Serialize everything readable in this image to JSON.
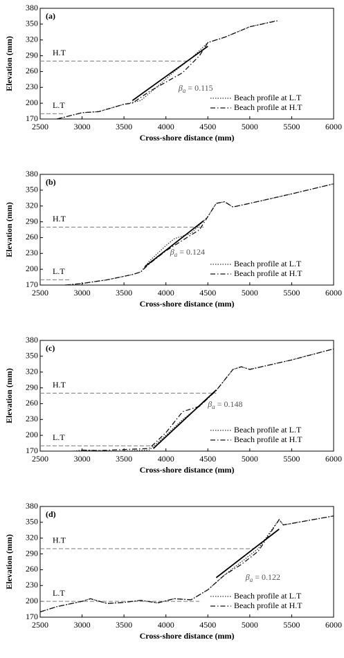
{
  "chart_data": [
    {
      "type": "line",
      "label": "(a)",
      "x_label": "Cross-shore distance (mm)",
      "y_label": "Elevation (mm)",
      "xlim": [
        2500,
        6000
      ],
      "ylim": [
        170,
        380
      ],
      "xticks": [
        2500,
        3000,
        3500,
        4000,
        4500,
        5000,
        5500,
        6000
      ],
      "yticks": [
        170,
        200,
        230,
        260,
        290,
        320,
        350,
        380
      ],
      "series": [
        {
          "name": "Beach profile at L.T",
          "color": "#333333",
          "dash": "1.5 2",
          "x": [
            2700,
            3000,
            3200,
            3500,
            3700,
            3900,
            4100,
            4300,
            4500,
            4700,
            5000,
            5300
          ],
          "values": [
            170,
            182,
            184,
            198,
            205,
            232,
            260,
            285,
            315,
            325,
            345,
            356
          ]
        },
        {
          "name": "Beach profile at H.T",
          "color": "#111111",
          "dash": "7 3 1.5 3",
          "x": [
            2700,
            3000,
            3200,
            3500,
            3600,
            3800,
            4000,
            4200,
            4400,
            4500,
            4700,
            5000,
            5350
          ],
          "values": [
            170,
            182,
            184,
            198,
            200,
            222,
            240,
            258,
            290,
            315,
            325,
            345,
            357
          ]
        }
      ],
      "levels": [
        {
          "label": "H.T",
          "value": 280
        },
        {
          "label": "L.T",
          "value": 180
        }
      ],
      "fit": {
        "x": [
          3600,
          4500
        ],
        "values": [
          205,
          308
        ]
      },
      "annotation": {
        "symbol": "β",
        "subscript": "a",
        "text": "= 0.115"
      }
    },
    {
      "type": "line",
      "label": "(b)",
      "x_label": "Cross-shore distance (mm)",
      "y_label": "Elevation (mm)",
      "xlim": [
        2500,
        6000
      ],
      "ylim": [
        170,
        380
      ],
      "xticks": [
        2500,
        3000,
        3500,
        4000,
        4500,
        5000,
        5500,
        6000
      ],
      "yticks": [
        170,
        200,
        230,
        260,
        290,
        320,
        350,
        380
      ],
      "series": [
        {
          "name": "Beach profile at L.T",
          "color": "#333333",
          "dash": "1.5 2",
          "x": [
            2800,
            3000,
            3300,
            3600,
            3700,
            3800,
            4000,
            4100,
            4300,
            4500,
            4600,
            4700,
            4800,
            5000,
            5500,
            6000
          ],
          "values": [
            170,
            173,
            180,
            190,
            195,
            215,
            245,
            258,
            268,
            300,
            325,
            328,
            318,
            325,
            343,
            362
          ]
        },
        {
          "name": "Beach profile at H.T",
          "color": "#111111",
          "dash": "7 3 1.5 3",
          "x": [
            2800,
            3000,
            3300,
            3600,
            3700,
            3800,
            4000,
            4200,
            4400,
            4500,
            4600,
            4700,
            4800,
            5000,
            5500,
            6000
          ],
          "values": [
            170,
            173,
            180,
            190,
            195,
            210,
            235,
            255,
            275,
            300,
            325,
            328,
            318,
            325,
            343,
            362
          ]
        }
      ],
      "levels": [
        {
          "label": "H.T",
          "value": 280
        },
        {
          "label": "L.T",
          "value": 180
        }
      ],
      "fit": {
        "x": [
          3750,
          4450
        ],
        "values": [
          205,
          292
        ]
      },
      "annotation": {
        "symbol": "β",
        "subscript": "a",
        "text": "= 0.124"
      }
    },
    {
      "type": "line",
      "label": "(c)",
      "x_label": "Cross-shore distance (mm)",
      "y_label": "Elevation (mm)",
      "xlim": [
        2500,
        6000
      ],
      "ylim": [
        170,
        380
      ],
      "xticks": [
        2500,
        3000,
        3500,
        4000,
        4500,
        5000,
        5500,
        6000
      ],
      "yticks": [
        170,
        200,
        230,
        260,
        290,
        320,
        350,
        380
      ],
      "series": [
        {
          "name": "Beach profile at L.T",
          "color": "#333333",
          "dash": "1.5 2",
          "x": [
            2900,
            3000,
            3200,
            3400,
            3800,
            4000,
            4200,
            4400,
            4600,
            4800,
            4900,
            5000,
            5500,
            6000
          ],
          "values": [
            170,
            172,
            171,
            170,
            172,
            200,
            230,
            255,
            285,
            325,
            330,
            325,
            343,
            364
          ]
        },
        {
          "name": "Beach profile at H.T",
          "color": "#111111",
          "dash": "7 3 1.5 3",
          "x": [
            3000,
            3200,
            3800,
            4000,
            4200,
            4400,
            4600,
            4800,
            4900,
            5000,
            5500,
            6000
          ],
          "values": [
            172,
            171,
            175,
            205,
            245,
            255,
            285,
            325,
            330,
            325,
            343,
            364
          ]
        }
      ],
      "levels": [
        {
          "label": "H.T",
          "value": 280
        },
        {
          "label": "L.T",
          "value": 180
        }
      ],
      "fit": {
        "x": [
          3850,
          4600
        ],
        "values": [
          175,
          286
        ]
      },
      "annotation": {
        "symbol": "β",
        "subscript": "a",
        "text": "= 0.148"
      }
    },
    {
      "type": "line",
      "label": "(d)",
      "x_label": "Cross-shore distance (mm)",
      "y_label": "Elevation (mm)",
      "xlim": [
        2500,
        6000
      ],
      "ylim": [
        170,
        380
      ],
      "xticks": [
        2500,
        3000,
        3500,
        4000,
        4500,
        5000,
        5500,
        6000
      ],
      "yticks": [
        170,
        200,
        230,
        260,
        290,
        320,
        350,
        380
      ],
      "series": [
        {
          "name": "Beach profile at L.T",
          "color": "#333333",
          "dash": "1.5 2",
          "x": [
            2500,
            2700,
            3000,
            3100,
            3300,
            3500,
            3700,
            3900,
            4100,
            4300,
            4500,
            4700,
            4900,
            5100,
            5350,
            5400,
            6000
          ],
          "values": [
            180,
            190,
            200,
            205,
            196,
            198,
            202,
            197,
            205,
            203,
            222,
            250,
            275,
            300,
            355,
            345,
            362
          ]
        },
        {
          "name": "Beach profile at H.T",
          "color": "#111111",
          "dash": "7 3 1.5 3",
          "x": [
            2500,
            2700,
            3000,
            3100,
            3300,
            3500,
            3700,
            3900,
            4100,
            4300,
            4500,
            4700,
            4900,
            5100,
            5350,
            5400,
            6000
          ],
          "values": [
            180,
            190,
            200,
            205,
            196,
            198,
            202,
            197,
            205,
            203,
            222,
            250,
            270,
            295,
            355,
            345,
            362
          ]
        }
      ],
      "levels": [
        {
          "label": "H.T",
          "value": 300
        },
        {
          "label": "L.T",
          "value": 200
        }
      ],
      "fit": {
        "x": [
          4600,
          5350
        ],
        "values": [
          245,
          337
        ]
      },
      "annotation": {
        "symbol": "β",
        "subscript": "a",
        "text": "= 0.122"
      }
    }
  ]
}
